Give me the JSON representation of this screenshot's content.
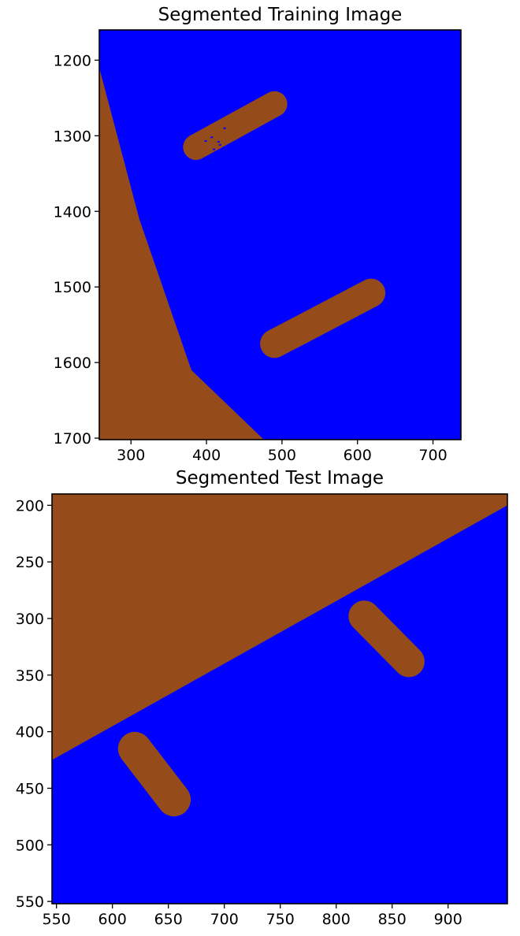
{
  "colors": {
    "background_class": "#0000ff",
    "object_class": "#964b1b",
    "frame": "#000000"
  },
  "chart_data": [
    {
      "type": "heatmap",
      "title": "Segmented Training Image",
      "xlim": [
        258,
        737
      ],
      "ylim": [
        1702,
        1160
      ],
      "y_inverted": true,
      "x_ticks": [
        300,
        400,
        500,
        600,
        700
      ],
      "y_ticks": [
        1200,
        1300,
        1400,
        1500,
        1600,
        1700
      ],
      "x_tick_labels": [
        "300",
        "400",
        "500",
        "600",
        "700"
      ],
      "y_tick_labels": [
        "1200",
        "1300",
        "1400",
        "1500",
        "1600",
        "1700"
      ],
      "regions": [
        {
          "class": "object",
          "shape": "polygon",
          "points": [
            [
              258,
              1210
            ],
            [
              311,
              1410
            ],
            [
              380,
              1610
            ],
            [
              476,
              1702
            ],
            [
              258,
              1702
            ]
          ]
        },
        {
          "class": "object",
          "shape": "capsule",
          "from": [
            386,
            1315
          ],
          "to": [
            490,
            1258
          ],
          "thickness": 34
        },
        {
          "class": "object",
          "shape": "capsule",
          "from": [
            490,
            1575
          ],
          "to": [
            618,
            1508
          ],
          "thickness": 38
        },
        {
          "class": "background",
          "shape": "dots",
          "points": [
            [
              407,
              1302
            ],
            [
              416,
              1308
            ],
            [
              410,
              1318
            ],
            [
              424,
              1290
            ],
            [
              399,
              1307
            ],
            [
              418,
              1312
            ]
          ]
        }
      ]
    },
    {
      "type": "heatmap",
      "title": "Segmented Test Image",
      "xlim": [
        546,
        953
      ],
      "ylim": [
        552,
        190
      ],
      "y_inverted": true,
      "x_ticks": [
        550,
        600,
        650,
        700,
        750,
        800,
        850,
        900
      ],
      "y_ticks": [
        200,
        250,
        300,
        350,
        400,
        450,
        500,
        550
      ],
      "x_tick_labels": [
        "550",
        "600",
        "650",
        "700",
        "750",
        "800",
        "850",
        "900"
      ],
      "y_tick_labels": [
        "200",
        "250",
        "300",
        "350",
        "400",
        "450",
        "500",
        "550"
      ],
      "regions": [
        {
          "class": "object",
          "shape": "polygon",
          "points": [
            [
              546,
              190
            ],
            [
              953,
              190
            ],
            [
              953,
              200
            ],
            [
              546,
              425
            ]
          ]
        },
        {
          "class": "object",
          "shape": "capsule",
          "from": [
            825,
            298
          ],
          "to": [
            865,
            338
          ],
          "thickness": 28
        },
        {
          "class": "object",
          "shape": "capsule",
          "from": [
            620,
            415
          ],
          "to": [
            655,
            460
          ],
          "thickness": 30
        }
      ]
    }
  ]
}
